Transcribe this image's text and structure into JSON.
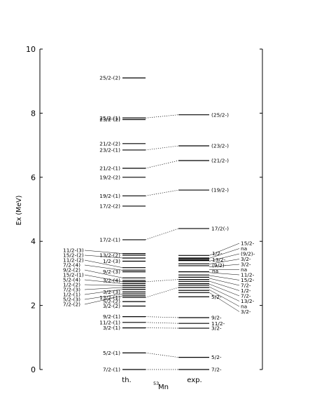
{
  "chart_data": {
    "type": "level-scheme",
    "nucleus": {
      "mass": "53",
      "symbol": "Mn"
    },
    "ylabel": "Ex  (MeV)",
    "ylim": [
      0,
      10
    ],
    "yticks": [
      0,
      2,
      4,
      6,
      8,
      10
    ],
    "columns": [
      {
        "name": "th.",
        "levels": [
          {
            "label": "7/2-(1)",
            "energy": 0.0
          },
          {
            "label": "5/2-(1)",
            "energy": 0.52
          },
          {
            "label": "3/2-(1)",
            "energy": 1.3
          },
          {
            "label": "11/2-(1)",
            "energy": 1.47
          },
          {
            "label": "9/2-(1)",
            "energy": 1.65
          },
          {
            "label": "3/2-(2)",
            "energy": 1.98
          },
          {
            "label": "5/2-(2)",
            "energy": 2.12
          },
          {
            "label": "13/2-(1)",
            "energy": 2.25
          },
          {
            "label": "7/2-(2)",
            "energy": 2.3
          },
          {
            "label": "5/2-(3)",
            "energy": 2.36
          },
          {
            "label": "3/2-(3)",
            "energy": 2.42
          },
          {
            "label": "1/2-(1)",
            "energy": 2.5
          },
          {
            "label": "7/2-(3)",
            "energy": 2.56
          },
          {
            "label": "1/2-(2)",
            "energy": 2.62
          },
          {
            "label": "5/2-(4)",
            "energy": 2.68
          },
          {
            "label": "15/2-(1)",
            "energy": 2.74
          },
          {
            "label": "3/2-(4)",
            "energy": 2.78
          },
          {
            "label": "9/2-(2)",
            "energy": 2.86
          },
          {
            "label": "9/2-(3)",
            "energy": 3.05
          },
          {
            "label": "7/2-(4)",
            "energy": 3.1
          },
          {
            "label": "11/2-(2)",
            "energy": 3.18
          },
          {
            "label": "1/2-(3)",
            "energy": 3.38
          },
          {
            "label": "15/2-(2)",
            "energy": 3.48
          },
          {
            "label": "13/2-(2)",
            "energy": 3.57
          },
          {
            "label": "11/2-(3)",
            "energy": 3.62
          },
          {
            "label": "17/2-(1)",
            "energy": 4.05
          },
          {
            "label": "17/2-(2)",
            "energy": 5.1
          },
          {
            "label": "19/2-(1)",
            "energy": 5.42
          },
          {
            "label": "19/2-(2)",
            "energy": 6.0
          },
          {
            "label": "21/2-(1)",
            "energy": 6.28
          },
          {
            "label": "23/2-(1)",
            "energy": 6.85
          },
          {
            "label": "21/2-(2)",
            "energy": 7.05
          },
          {
            "label": "23/2-(2)",
            "energy": 7.8
          },
          {
            "label": "25/2-(1)",
            "energy": 7.85
          },
          {
            "label": "25/2-(2)",
            "energy": 9.1
          }
        ]
      },
      {
        "name": "exp.",
        "levels": [
          {
            "label": "7/2-",
            "energy": 0.0
          },
          {
            "label": "5/2-",
            "energy": 0.38
          },
          {
            "label": "3/2-",
            "energy": 1.29
          },
          {
            "label": "11/2-",
            "energy": 1.44
          },
          {
            "label": "9/2-",
            "energy": 1.62
          },
          {
            "label": "5/2-",
            "energy": 2.27
          },
          {
            "label": "3/2-",
            "energy": 2.4
          },
          {
            "label": "na",
            "energy": 2.47
          },
          {
            "label": "13/2-",
            "energy": 2.56
          },
          {
            "label": "7/2-",
            "energy": 2.63
          },
          {
            "label": "1/2-",
            "energy": 2.68
          },
          {
            "label": "7/2-",
            "energy": 2.75
          },
          {
            "label": "15/2-",
            "energy": 2.81
          },
          {
            "label": "11/2-",
            "energy": 2.88
          },
          {
            "label": "na",
            "energy": 2.95
          },
          {
            "label": "3/2-",
            "energy": 3.05
          },
          {
            "label": "(9/2)-",
            "energy": 3.24
          },
          {
            "label": "3/2-",
            "energy": 3.3
          },
          {
            "label": "13/2-",
            "energy": 3.4
          },
          {
            "label": "(9/2)-",
            "energy": 3.42
          },
          {
            "label": "na",
            "energy": 3.46
          },
          {
            "label": "1/2-",
            "energy": 3.48
          },
          {
            "label": "15/2-",
            "energy": 3.56
          },
          {
            "label": "17/2(-)",
            "energy": 4.4
          },
          {
            "label": "(19/2-)",
            "energy": 5.6
          },
          {
            "label": "(21/2-)",
            "energy": 6.52
          },
          {
            "label": "(23/2-)",
            "energy": 6.98
          },
          {
            "label": "(25/2-)",
            "energy": 7.95
          }
        ]
      }
    ],
    "labels_left_of_th": [
      "11/2-(3)",
      "15/2-(2)",
      "11/2-(2)",
      "7/2-(4)",
      "9/2-(2)",
      "15/2-(1)",
      "5/2-(4)",
      "1/2-(2)",
      "7/2-(3)",
      "1/2-(1)",
      "5/2-(3)",
      "7/2-(2)"
    ],
    "labels_right_of_exp": [
      "15/2-",
      "na",
      "(9/2)-",
      "3/2-",
      "3/2-",
      "na",
      "11/2-",
      "15/2-",
      "7/2-",
      "1/2-",
      "7/2-",
      "13/2-",
      "na",
      "3/2-"
    ],
    "inline_exp_labels": [
      "1/2-",
      "13/2-",
      "(9/2)-",
      "na"
    ],
    "connections": [
      {
        "th": "7/2-(1)",
        "exp": 0.0
      },
      {
        "th": "5/2-(1)",
        "exp": 0.38
      },
      {
        "th": "3/2-(1)",
        "exp": 1.29
      },
      {
        "th": "11/2-(1)",
        "exp": 1.44
      },
      {
        "th": "9/2-(1)",
        "exp": 1.62
      },
      {
        "th": "13/2-(1)",
        "exp": 2.56
      },
      {
        "th": "15/2-(1)",
        "exp": 2.81
      },
      {
        "th": "17/2-(1)",
        "exp": 4.4
      },
      {
        "th": "19/2-(1)",
        "exp": 5.6
      },
      {
        "th": "21/2-(1)",
        "exp": 6.52
      },
      {
        "th": "23/2-(1)",
        "exp": 6.98
      },
      {
        "th": "25/2-(1)",
        "exp": 7.95
      }
    ]
  }
}
